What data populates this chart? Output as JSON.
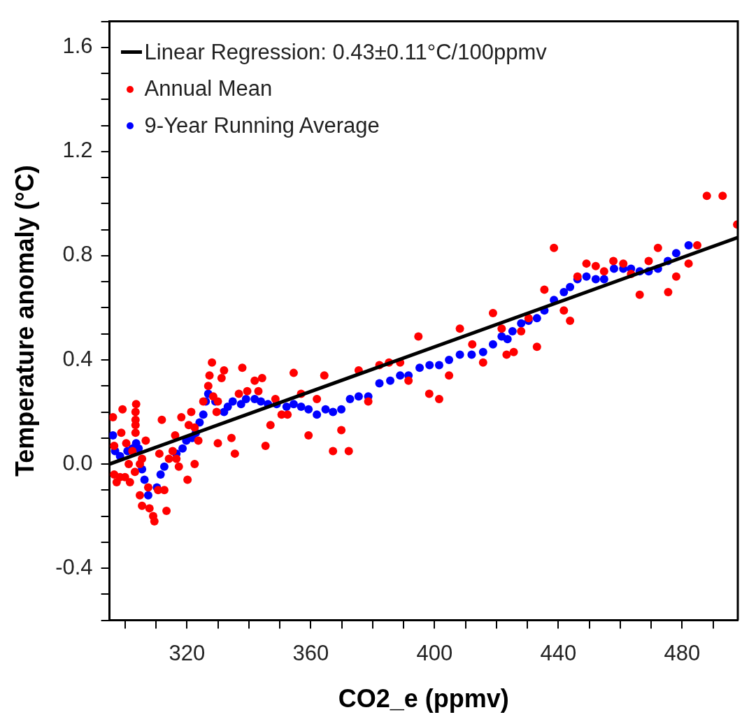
{
  "chart_data": {
    "type": "scatter",
    "xlabel": "CO2_e (ppmv)",
    "ylabel": "Temperature anomaly (°C)",
    "xlim": [
      295,
      498
    ],
    "ylim": [
      -0.6,
      1.7
    ],
    "xticks": [
      {
        "value": 300,
        "label": null
      },
      {
        "value": 310,
        "label": null
      },
      320,
      {
        "value": 330,
        "label": null
      },
      {
        "value": 340,
        "label": null
      },
      {
        "value": 350,
        "label": null
      },
      360,
      {
        "value": 370,
        "label": null
      },
      {
        "value": 380,
        "label": null
      },
      {
        "value": 390,
        "label": null
      },
      400,
      {
        "value": 410,
        "label": null
      },
      {
        "value": 420,
        "label": null
      },
      {
        "value": 430,
        "label": null
      },
      440,
      {
        "value": 450,
        "label": null
      },
      {
        "value": 460,
        "label": null
      },
      {
        "value": 470,
        "label": null
      },
      480,
      {
        "value": 490,
        "label": null
      }
    ],
    "yticks": [
      {
        "value": -0.6,
        "label": null
      },
      {
        "value": -0.5,
        "label": null
      },
      {
        "value": -0.4,
        "label": "-0.4"
      },
      {
        "value": -0.3,
        "label": null
      },
      {
        "value": -0.2,
        "label": null
      },
      {
        "value": -0.1,
        "label": null
      },
      {
        "value": 0,
        "label": "0.0"
      },
      {
        "value": 0.1,
        "label": null
      },
      {
        "value": 0.2,
        "label": null
      },
      {
        "value": 0.3,
        "label": null
      },
      {
        "value": 0.4,
        "label": "0.4"
      },
      {
        "value": 0.5,
        "label": null
      },
      {
        "value": 0.6,
        "label": null
      },
      {
        "value": 0.7,
        "label": null
      },
      {
        "value": 0.8,
        "label": "0.8"
      },
      {
        "value": 0.9,
        "label": null
      },
      {
        "value": 1.0,
        "label": null
      },
      {
        "value": 1.1,
        "label": null
      },
      {
        "value": 1.2,
        "label": "1.2"
      },
      {
        "value": 1.3,
        "label": null
      },
      {
        "value": 1.4,
        "label": null
      },
      {
        "value": 1.5,
        "label": null
      },
      {
        "value": 1.6,
        "label": "1.6"
      },
      {
        "value": 1.7,
        "label": null
      }
    ],
    "legend": "top left",
    "marker": "circle",
    "series": [
      {
        "type": "line",
        "name": "Linear Regression: 0.43±0.11°C/100ppmv",
        "color": "#000000",
        "marker": "none",
        "x": [
          295,
          498
        ],
        "values": [
          0.0,
          0.87
        ]
      },
      {
        "name": "Annual Mean",
        "color": "#ff0000",
        "x": [
          296.1,
          299.2,
          303.6,
          303.4,
          303.4,
          303.4,
          303.4,
          298.8,
          296.5,
          300.4,
          302.4,
          306.7,
          311.9,
          318.2,
          321.4,
          316.2,
          328.1,
          327.3,
          332.0,
          331.2,
          326.9,
          337.9,
          341.9,
          344.3,
          336.8,
          339.5,
          343.1,
          325.3,
          328.5,
          330.0,
          329.6,
          348.6,
          354.5,
          350.6,
          352.5,
          347.0,
          320.6,
          322.5,
          323.7,
          330.0,
          334.4,
          345.4,
          335.5,
          322.5,
          315.4,
          316.6,
          317.4,
          314.2,
          320.2,
          311.1,
          296.5,
          298.4,
          300.0,
          297.3,
          301.6,
          301.2,
          303.2,
          304.8,
          305.5,
          304.8,
          307.5,
          310.7,
          312.7,
          305.5,
          307.9,
          309.1,
          309.5,
          313.4,
          364.4,
          356.9,
          362.0,
          375.5,
          382.2,
          385.3,
          388.9,
          378.6,
          391.6,
          394.8,
          398.3,
          401.5,
          404.7,
          408.2,
          412.2,
          415.7,
          418.9,
          421.7,
          423.3,
          425.6,
          428.0,
          430.4,
          433.1,
          435.5,
          359.3,
          369.9,
          367.2,
          372.3,
          438.6,
          441.8,
          443.8,
          446.2,
          449.1,
          452.1,
          454.8,
          457.8,
          461.0,
          463.5,
          466.3,
          469.2,
          472.2,
          475.5,
          478.1,
          482.1,
          484.9,
          488.0,
          493.1,
          497.8
        ],
        "values": [
          0.18,
          0.21,
          0.23,
          0.2,
          0.17,
          0.15,
          0.12,
          0.12,
          0.07,
          0.08,
          0.05,
          0.09,
          0.17,
          0.18,
          0.2,
          0.11,
          0.39,
          0.34,
          0.36,
          0.33,
          0.3,
          0.37,
          0.32,
          0.33,
          0.27,
          0.28,
          0.28,
          0.24,
          0.26,
          0.24,
          0.2,
          0.25,
          0.35,
          0.19,
          0.19,
          0.15,
          0.15,
          0.14,
          0.09,
          0.08,
          0.1,
          0.07,
          0.04,
          0.0,
          0.05,
          0.02,
          -0.01,
          0.02,
          -0.06,
          0.04,
          -0.04,
          -0.05,
          -0.05,
          -0.07,
          -0.07,
          0.0,
          -0.03,
          0.0,
          0.02,
          -0.12,
          -0.09,
          -0.1,
          -0.1,
          -0.16,
          -0.17,
          -0.2,
          -0.22,
          -0.18,
          0.34,
          0.27,
          0.25,
          0.36,
          0.38,
          0.39,
          0.39,
          0.24,
          0.32,
          0.49,
          0.27,
          0.25,
          0.34,
          0.52,
          0.46,
          0.39,
          0.58,
          0.52,
          0.42,
          0.43,
          0.51,
          0.56,
          0.45,
          0.67,
          0.11,
          0.13,
          0.05,
          0.05,
          0.83,
          0.59,
          0.55,
          0.72,
          0.77,
          0.76,
          0.74,
          0.78,
          0.77,
          0.73,
          0.65,
          0.78,
          0.83,
          0.66,
          0.72,
          0.77,
          0.84,
          1.03,
          1.03,
          0.92
        ]
      },
      {
        "name": "9-Year Running Average",
        "color": "#0000ff",
        "x": [
          296.1,
          296.8,
          298.4,
          300.8,
          302.4,
          303.6,
          304.4,
          305.5,
          306.3,
          307.5,
          310.3,
          311.5,
          312.7,
          314.6,
          316.6,
          318.6,
          319.8,
          321.7,
          322.9,
          324.1,
          325.3,
          326.1,
          326.9,
          329.2,
          332.0,
          333.2,
          334.8,
          337.5,
          339.1,
          341.9,
          343.9,
          346.2,
          349.0,
          352.2,
          354.5,
          356.9,
          359.3,
          362.0,
          364.8,
          367.2,
          369.9,
          372.7,
          375.5,
          378.6,
          382.2,
          385.7,
          388.9,
          391.6,
          395.2,
          398.4,
          401.5,
          404.7,
          408.2,
          412.0,
          415.7,
          418.9,
          421.7,
          423.6,
          425.2,
          428.0,
          430.4,
          433.1,
          435.5,
          438.6,
          441.8,
          443.8,
          446.2,
          449.1,
          452.1,
          454.8,
          458.0,
          461.0,
          463.5,
          466.3,
          469.2,
          472.2,
          475.4,
          478.1,
          482.1
        ],
        "values": [
          0.11,
          0.05,
          0.03,
          0.05,
          0.06,
          0.08,
          0.06,
          -0.02,
          -0.06,
          -0.12,
          -0.09,
          -0.04,
          -0.01,
          null,
          0.04,
          0.06,
          0.09,
          0.1,
          0.12,
          0.16,
          0.19,
          0.24,
          0.27,
          0.24,
          0.2,
          0.22,
          0.24,
          0.23,
          0.25,
          0.25,
          0.24,
          0.23,
          0.23,
          0.22,
          0.23,
          0.22,
          0.21,
          0.19,
          0.21,
          0.2,
          0.21,
          0.25,
          0.26,
          0.26,
          0.31,
          0.32,
          0.34,
          0.34,
          0.37,
          0.38,
          0.38,
          0.4,
          0.42,
          0.42,
          0.43,
          0.46,
          0.49,
          0.48,
          0.51,
          0.54,
          0.55,
          0.56,
          0.59,
          0.63,
          0.66,
          0.68,
          0.71,
          0.72,
          0.71,
          0.71,
          0.75,
          0.75,
          0.75,
          0.74,
          0.74,
          0.75,
          0.78,
          0.81,
          0.84
        ]
      }
    ]
  }
}
